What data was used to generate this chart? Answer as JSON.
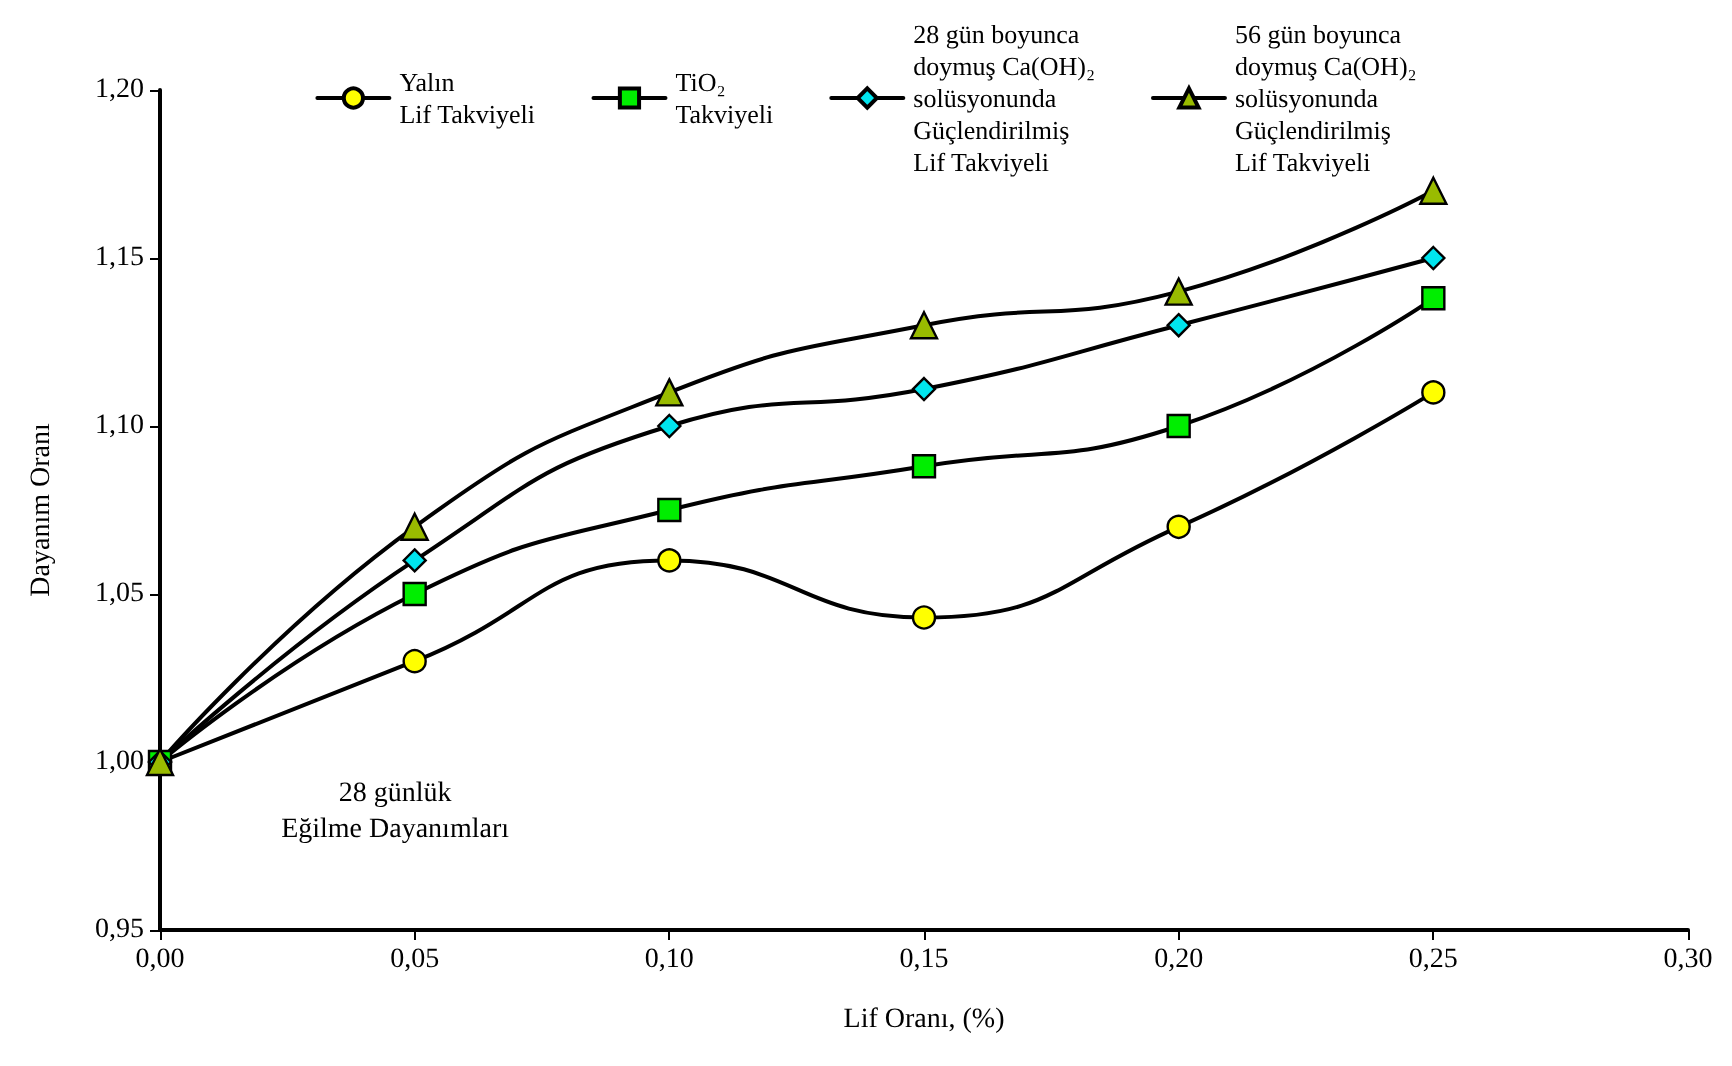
{
  "chart_data": {
    "type": "line",
    "xlabel": "Lif Oranı, (%)",
    "ylabel": "Dayanım Oranı",
    "x": [
      0,
      0.05,
      0.1,
      0.15,
      0.2,
      0.25
    ],
    "series": [
      {
        "name": "Yalın\nLif Takviyeli",
        "color": "#ffff00",
        "marker": "circle",
        "values": [
          1.0,
          1.03,
          1.06,
          1.043,
          1.07,
          1.11
        ]
      },
      {
        "name": "TiO₂\nTakviyeli",
        "color": "#00ee00",
        "marker": "square",
        "values": [
          1.0,
          1.05,
          1.075,
          1.088,
          1.1,
          1.138
        ]
      },
      {
        "name": "28 gün boyunca\ndoymuş Ca(OH)₂\nsolüsyonunda\nGüçlendirilmiş\nLif Takviyeli",
        "color": "#00e5ee",
        "marker": "diamond",
        "values": [
          1.0,
          1.06,
          1.1,
          1.111,
          1.13,
          1.15
        ]
      },
      {
        "name": "56 gün boyunca\ndoymuş Ca(OH)₂\nsolüsyonunda\nGüçlendirilmiş\nLif Takviyeli",
        "color": "#99bb00",
        "marker": "triangle",
        "values": [
          1.0,
          1.07,
          1.11,
          1.13,
          1.14,
          1.17
        ]
      }
    ],
    "xlim": [
      0,
      0.3
    ],
    "xticks": [
      {
        "value": 0,
        "label": "0,00"
      },
      {
        "value": 0.05,
        "label": "0,05"
      },
      {
        "value": 0.1,
        "label": "0,10"
      },
      {
        "value": 0.15,
        "label": "0,15"
      },
      {
        "value": 0.2,
        "label": "0,20"
      },
      {
        "value": 0.25,
        "label": "0,25"
      },
      {
        "value": 0.3,
        "label": "0,30"
      }
    ],
    "ylim": [
      0.95,
      1.2
    ],
    "yticks": [
      {
        "value": 0.95,
        "label": "0,95"
      },
      {
        "value": 1.0,
        "label": "1,00"
      },
      {
        "value": 1.05,
        "label": "1,05"
      },
      {
        "value": 1.1,
        "label": "1,10"
      },
      {
        "value": 1.15,
        "label": "1,15"
      },
      {
        "value": 1.2,
        "label": "1,20"
      }
    ],
    "annotations": [
      "28 günlük\nEğilme Dayanımları"
    ],
    "grid": false,
    "legend": "top",
    "line_style": "solid"
  }
}
